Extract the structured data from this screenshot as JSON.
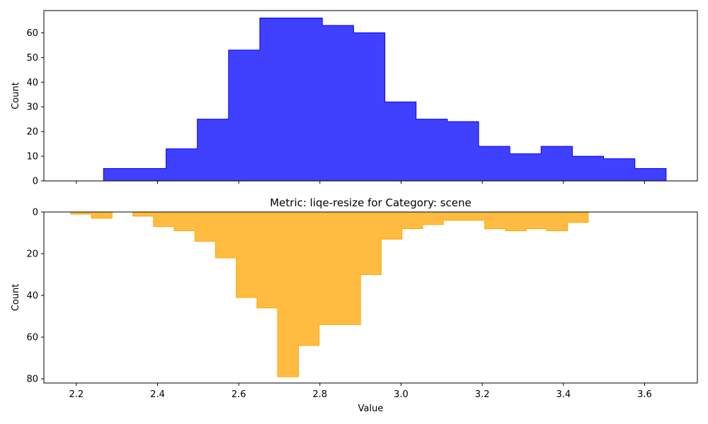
{
  "chart_data": [
    {
      "type": "bar",
      "subtype": "histogram-step-filled",
      "title": "",
      "xlabel": "",
      "ylabel": "Count",
      "color": "#0000ff",
      "edge_color": "#0000ff",
      "xlim": [
        2.12,
        3.73
      ],
      "ylim": [
        0,
        69
      ],
      "y_inverted": false,
      "xticks": [
        2.2,
        2.4,
        2.6,
        2.8,
        3.0,
        3.2,
        3.4,
        3.6
      ],
      "xtick_labels_shown": false,
      "yticks": [
        0,
        10,
        20,
        30,
        40,
        50,
        60
      ],
      "yticklabels": [
        "0",
        "10",
        "20",
        "30",
        "40",
        "50",
        "60"
      ],
      "bin_edges": [
        2.267,
        2.344,
        2.421,
        2.498,
        2.575,
        2.652,
        2.729,
        2.806,
        2.883,
        2.96,
        3.037,
        3.114,
        3.191,
        3.268,
        3.345,
        3.422,
        3.499,
        3.576,
        3.653
      ],
      "values": [
        5,
        5,
        13,
        25,
        53,
        66,
        66,
        63,
        60,
        32,
        25,
        24,
        14,
        11,
        14,
        10,
        9,
        5
      ]
    },
    {
      "type": "bar",
      "subtype": "histogram-step-filled",
      "title": "Metric: liqe-resize for Category: scene",
      "xlabel": "Value",
      "ylabel": "Count",
      "color": "#ffa500",
      "edge_color": "#ffa500",
      "xlim": [
        2.12,
        3.73
      ],
      "ylim": [
        0,
        82
      ],
      "y_inverted": true,
      "xticks": [
        2.2,
        2.4,
        2.6,
        2.8,
        3.0,
        3.2,
        3.4,
        3.6
      ],
      "xticklabels": [
        "2.2",
        "2.4",
        "2.6",
        "2.8",
        "3.0",
        "3.2",
        "3.4",
        "3.6"
      ],
      "yticks": [
        0,
        20,
        40,
        60,
        80
      ],
      "yticklabels": [
        "0",
        "20",
        "40",
        "60",
        "80"
      ],
      "bin_edges": [
        2.186,
        2.237,
        2.288,
        2.339,
        2.39,
        2.441,
        2.492,
        2.543,
        2.594,
        2.645,
        2.696,
        2.747,
        2.798,
        2.849,
        2.9,
        2.951,
        3.002,
        3.053,
        3.104,
        3.155,
        3.206,
        3.257,
        3.308,
        3.359,
        3.41,
        3.461
      ],
      "values": [
        1,
        3,
        0,
        2,
        7,
        9,
        14,
        22,
        41,
        46,
        79,
        64,
        54,
        54,
        30,
        13,
        8,
        6,
        4,
        4,
        8,
        9,
        8,
        9,
        5
      ]
    }
  ]
}
